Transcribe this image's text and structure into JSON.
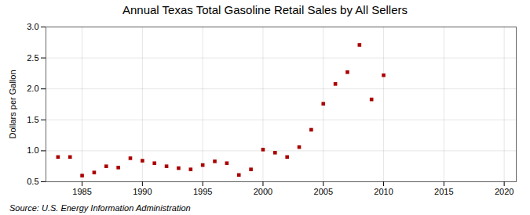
{
  "chart_data": {
    "type": "scatter",
    "title": "Annual Texas Total Gasoline Retail Sales by All Sellers",
    "ylabel": "Dollars per Gallon",
    "source": "Source: U.S. Energy Information Administration",
    "x": [
      1983,
      1984,
      1985,
      1986,
      1987,
      1988,
      1989,
      1990,
      1991,
      1992,
      1993,
      1994,
      1995,
      1996,
      1997,
      1998,
      1999,
      2000,
      2001,
      2002,
      2003,
      2004,
      2005,
      2006,
      2007,
      2008,
      2009,
      2010
    ],
    "values": [
      0.9,
      0.9,
      0.6,
      0.65,
      0.75,
      0.73,
      0.88,
      0.84,
      0.8,
      0.75,
      0.72,
      0.7,
      0.77,
      0.83,
      0.8,
      0.61,
      0.7,
      1.02,
      0.97,
      0.9,
      1.06,
      1.34,
      1.76,
      2.08,
      2.27,
      2.71,
      1.83,
      2.22
    ],
    "color": "#aa0000",
    "marker": "square",
    "xlim": [
      1982,
      2021
    ],
    "ylim": [
      0.5,
      3.0
    ],
    "xticks": [
      1985,
      1990,
      1995,
      2000,
      2005,
      2010,
      2015,
      2020
    ],
    "yticks": [
      0.5,
      {
        "value": 1,
        "label": "1.0"
      },
      1.5,
      {
        "value": 2,
        "label": "2.0"
      },
      2.5,
      {
        "value": 3,
        "label": "3.0"
      }
    ],
    "grid": true
  }
}
